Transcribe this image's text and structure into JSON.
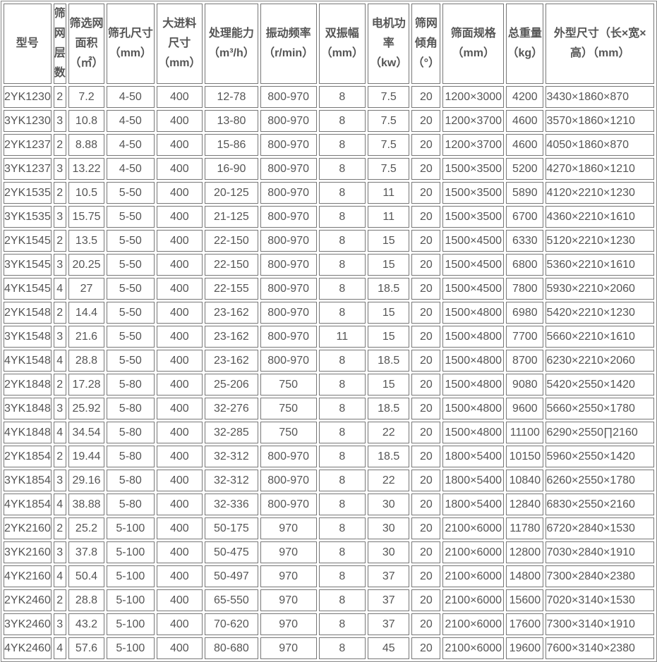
{
  "headers": [
    "型号",
    "筛网层数",
    "筛选网面积（㎡）",
    "筛孔尺寸（mm）",
    "大进料尺寸（mm）",
    "处理能力（m³/h）",
    "振动频率（r/min）",
    "双振幅（mm）",
    "电机功率（kw）",
    "筛网倾角（°）",
    "筛面规格（mm）",
    "总重量（kg）",
    "外型尺寸（长×宽×高）（mm）"
  ],
  "rows": [
    [
      "2YK1230",
      "2",
      "7.2",
      "4-50",
      "400",
      "12-78",
      "800-970",
      "8",
      "7.5",
      "20",
      "1200×3000",
      "4200",
      "3430×1860×870"
    ],
    [
      "3YK1230",
      "3",
      "10.8",
      "4-50",
      "400",
      "13-80",
      "800-970",
      "8",
      "7.5",
      "20",
      "1200×3700",
      "4600",
      "3570×1860×1210"
    ],
    [
      "2YK1237",
      "2",
      "8.88",
      "4-50",
      "400",
      "15-86",
      "800-970",
      "8",
      "7.5",
      "20",
      "1200×3700",
      "4600",
      "4050×1860×870"
    ],
    [
      "3YK1237",
      "3",
      "13.22",
      "4-50",
      "400",
      "16-90",
      "800-970",
      "8",
      "7.5",
      "20",
      "1500×3500",
      "5200",
      "4270×1860×1210"
    ],
    [
      "2YK1535",
      "2",
      "10.5",
      "5-50",
      "400",
      "20-125",
      "800-970",
      "8",
      "11",
      "20",
      "1500×3500",
      "5890",
      "4120×2210×1230"
    ],
    [
      "3YK1535",
      "3",
      "15.75",
      "5-50",
      "400",
      "21-125",
      "800-970",
      "8",
      "11",
      "20",
      "1500×3500",
      "6700",
      "4360×2210×1610"
    ],
    [
      "2YK1545",
      "2",
      "13.5",
      "5-50",
      "400",
      "22-150",
      "800-970",
      "8",
      "15",
      "20",
      "1500×4500",
      "6330",
      "5120×2210×1230"
    ],
    [
      "3YK1545",
      "3",
      "20.25",
      "5-50",
      "400",
      "22-150",
      "800-970",
      "8",
      "15",
      "20",
      "1500×4500",
      "6800",
      "5360×2210×1610"
    ],
    [
      "4YK1545",
      "4",
      "27",
      "5-50",
      "400",
      "22-155",
      "800-970",
      "8",
      "18.5",
      "20",
      "1500×4500",
      "7800",
      "5930×2210×2060"
    ],
    [
      "2YK1548",
      "2",
      "14.4",
      "5-50",
      "400",
      "23-162",
      "800-970",
      "8",
      "15",
      "20",
      "1500×4800",
      "6980",
      "5420×2210×1230"
    ],
    [
      "3YK1548",
      "3",
      "21.6",
      "5-50",
      "400",
      "23-162",
      "800-970",
      "11",
      "15",
      "20",
      "1500×4800",
      "7700",
      "5660×2210×1610"
    ],
    [
      "4YK1548",
      "4",
      "28.8",
      "5-50",
      "400",
      "23-162",
      "800-970",
      "8",
      "18.5",
      "20",
      "1500×4800",
      "8700",
      "6230×2210×2060"
    ],
    [
      "2YK1848",
      "2",
      "17.28",
      "5-80",
      "400",
      "25-206",
      "750",
      "8",
      "15",
      "20",
      "1500×4800",
      "9080",
      "5420×2550×1420"
    ],
    [
      "3YK1848",
      "3",
      "25.92",
      "5-80",
      "400",
      "32-276",
      "750",
      "8",
      "18.5",
      "20",
      "1500×4800",
      "9600",
      "5660×2550×1780"
    ],
    [
      "4YK1848",
      "4",
      "34.54",
      "5-80",
      "400",
      "32-285",
      "750",
      "8",
      "22",
      "20",
      "1500×4800",
      "11100",
      "6290×2550∏2160"
    ],
    [
      "2YK1854",
      "2",
      "19.44",
      "5-80",
      "400",
      "32-312",
      "800-970",
      "8",
      "18.5",
      "20",
      "1800×5400",
      "10150",
      "5960×2550×1420"
    ],
    [
      "3YK1854",
      "3",
      "29.16",
      "5-80",
      "400",
      "32-312",
      "800-970",
      "8",
      "22",
      "20",
      "1800×5400",
      "10840",
      "6260×2550×1780"
    ],
    [
      "4YK1854",
      "4",
      "38.88",
      "5-80",
      "400",
      "32-336",
      "800-970",
      "8",
      "30",
      "20",
      "1800×5400",
      "12840",
      "6830×2550×2160"
    ],
    [
      "2YK2160",
      "2",
      "25.2",
      "5-100",
      "400",
      "50-175",
      "970",
      "8",
      "30",
      "20",
      "2100×6000",
      "11780",
      "6720×2840×1530"
    ],
    [
      "3YK2160",
      "3",
      "37.8",
      "5-100",
      "400",
      "50-475",
      "970",
      "8",
      "30",
      "20",
      "2100×6000",
      "12800",
      "7030×2840×1910"
    ],
    [
      "4YK2160",
      "4",
      "50.4",
      "5-100",
      "400",
      "50-497",
      "970",
      "8",
      "37",
      "20",
      "2100×6000",
      "14800",
      "7300×2840×2380"
    ],
    [
      "2YK2460",
      "2",
      "28.8",
      "5-100",
      "400",
      "65-550",
      "970",
      "8",
      "37",
      "20",
      "2100×6000",
      "15600",
      "7020×3140×1530"
    ],
    [
      "3YK2460",
      "3",
      "43.2",
      "5-100",
      "400",
      "70-620",
      "970",
      "8",
      "37",
      "20",
      "2100×6000",
      "17600",
      "7300×3140×1910"
    ],
    [
      "4YK2460",
      "4",
      "57.6",
      "5-100",
      "400",
      "80-680",
      "970",
      "8",
      "45",
      "20",
      "2100×6000",
      "19600",
      "7600×3140×2380"
    ]
  ]
}
